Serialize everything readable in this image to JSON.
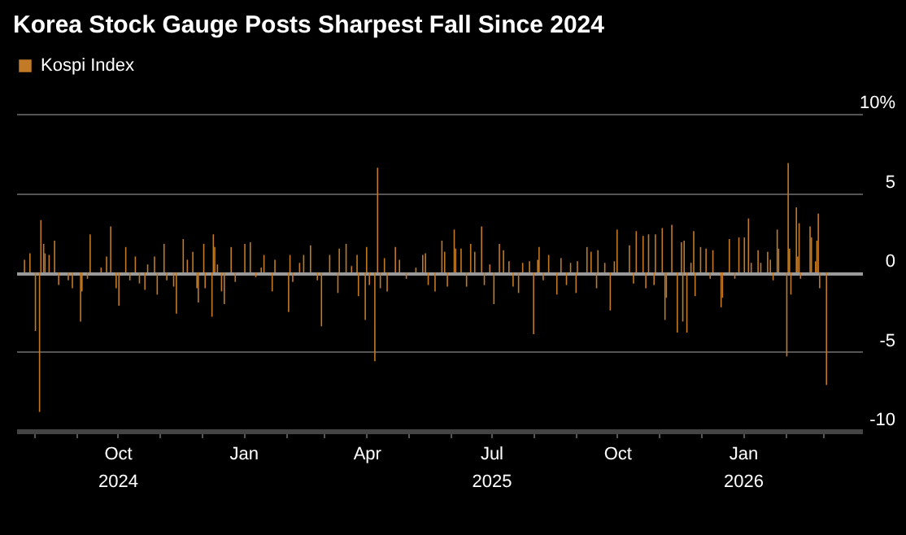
{
  "chart_data": {
    "type": "bar",
    "title": "Korea Stock Gauge Posts Sharpest Fall Since 2024",
    "x": [
      "2024-07-25",
      "2024-07-29",
      "2024-08-02",
      "2024-08-05",
      "2024-08-06",
      "2024-08-08",
      "2024-08-09",
      "2024-08-12",
      "2024-08-16",
      "2024-08-19",
      "2024-08-26",
      "2024-08-29",
      "2024-09-04",
      "2024-09-05",
      "2024-09-09",
      "2024-09-11",
      "2024-09-19",
      "2024-09-23",
      "2024-09-26",
      "2024-09-30",
      "2024-10-02",
      "2024-10-07",
      "2024-10-10",
      "2024-10-14",
      "2024-10-17",
      "2024-10-21",
      "2024-10-23",
      "2024-10-28",
      "2024-10-30",
      "2024-11-04",
      "2024-11-06",
      "2024-11-11",
      "2024-11-13",
      "2024-11-18",
      "2024-11-21",
      "2024-11-25",
      "2024-11-28",
      "2024-11-29",
      "2024-12-03",
      "2024-12-04",
      "2024-12-09",
      "2024-12-10",
      "2024-12-11",
      "2024-12-13",
      "2024-12-16",
      "2024-12-18",
      "2024-12-23",
      "2024-12-26",
      "2025-01-02",
      "2025-01-06",
      "2025-01-10",
      "2025-01-14",
      "2025-01-16",
      "2025-01-22",
      "2025-01-24",
      "2025-02-03",
      "2025-02-04",
      "2025-02-06",
      "2025-02-11",
      "2025-02-14",
      "2025-02-19",
      "2025-02-24",
      "2025-02-27",
      "2025-03-05",
      "2025-03-11",
      "2025-03-12",
      "2025-03-17",
      "2025-03-21",
      "2025-03-25",
      "2025-03-26",
      "2025-03-31",
      "2025-04-01",
      "2025-04-03",
      "2025-04-07",
      "2025-04-09",
      "2025-04-11",
      "2025-04-14",
      "2025-04-16",
      "2025-04-22",
      "2025-04-25",
      "2025-04-30",
      "2025-05-07",
      "2025-05-12",
      "2025-05-14",
      "2025-05-16",
      "2025-05-21",
      "2025-05-26",
      "2025-05-28",
      "2025-05-30",
      "2025-06-04",
      "2025-06-05",
      "2025-06-09",
      "2025-06-13",
      "2025-06-16",
      "2025-06-19",
      "2025-06-24",
      "2025-06-26",
      "2025-06-30",
      "2025-07-03",
      "2025-07-07",
      "2025-07-10",
      "2025-07-14",
      "2025-07-17",
      "2025-07-21",
      "2025-07-24",
      "2025-07-29",
      "2025-08-01",
      "2025-08-04",
      "2025-08-05",
      "2025-08-08",
      "2025-08-12",
      "2025-08-18",
      "2025-08-21",
      "2025-08-25",
      "2025-08-28",
      "2025-09-01",
      "2025-09-02",
      "2025-09-09",
      "2025-09-12",
      "2025-09-16",
      "2025-09-17",
      "2025-09-22",
      "2025-09-26",
      "2025-09-29",
      "2025-10-01",
      "2025-10-10",
      "2025-10-13",
      "2025-10-15",
      "2025-10-20",
      "2025-10-22",
      "2025-10-24",
      "2025-10-28",
      "2025-10-29",
      "2025-11-03",
      "2025-11-05",
      "2025-11-06",
      "2025-11-10",
      "2025-11-14",
      "2025-11-17",
      "2025-11-18",
      "2025-11-19",
      "2025-11-21",
      "2025-11-24",
      "2025-11-26",
      "2025-11-27",
      "2025-12-01",
      "2025-12-05",
      "2025-12-08",
      "2025-12-10",
      "2025-12-16",
      "2025-12-17",
      "2025-12-22",
      "2025-12-26",
      "2025-12-29",
      "2026-01-02",
      "2026-01-05",
      "2026-01-07",
      "2026-01-12",
      "2026-01-14",
      "2026-01-19",
      "2026-01-21",
      "2026-01-23",
      "2026-01-26",
      "2026-01-27",
      "2026-02-02",
      "2026-02-03",
      "2026-02-04",
      "2026-02-05",
      "2026-02-09",
      "2026-02-10",
      "2026-02-11",
      "2026-02-12",
      "2026-02-19",
      "2026-02-20",
      "2026-02-23",
      "2026-02-24",
      "2026-02-25",
      "2026-02-26",
      "2026-03-03"
    ],
    "series": [
      {
        "name": "Kospi Index",
        "color": "#c27a26",
        "values": [
          0.8,
          1.2,
          -3.7,
          -8.8,
          3.3,
          1.8,
          1.2,
          1.1,
          2.0,
          -0.8,
          -0.5,
          -1.0,
          -3.1,
          -1.2,
          -0.4,
          2.4,
          0.3,
          1.0,
          2.9,
          -1.0,
          -2.1,
          1.6,
          -0.5,
          1.0,
          -0.7,
          -1.1,
          0.5,
          1.0,
          -1.4,
          1.8,
          -0.5,
          -0.9,
          -2.6,
          2.1,
          0.8,
          1.3,
          -1.0,
          -1.9,
          1.8,
          -1.0,
          -2.8,
          2.4,
          1.6,
          0.5,
          -1.2,
          -2.0,
          1.6,
          -0.6,
          1.8,
          1.9,
          -0.3,
          0.3,
          1.1,
          -1.2,
          0.8,
          -2.5,
          1.1,
          -0.6,
          0.6,
          1.1,
          1.7,
          -0.5,
          -3.4,
          1.1,
          -1.3,
          1.5,
          1.8,
          0.4,
          1.1,
          -1.5,
          -3.0,
          1.6,
          -0.8,
          -5.6,
          6.6,
          -1.0,
          0.9,
          -1.2,
          1.6,
          0.8,
          -0.4,
          0.3,
          1.1,
          1.2,
          -0.8,
          -1.2,
          2.0,
          1.3,
          -0.9,
          2.7,
          1.5,
          1.5,
          -0.9,
          1.8,
          1.3,
          2.9,
          -0.8,
          0.5,
          -2.0,
          1.8,
          1.4,
          0.7,
          -0.9,
          -1.3,
          0.6,
          0.7,
          -3.9,
          0.8,
          1.6,
          -0.5,
          1.1,
          -1.4,
          0.9,
          -0.8,
          0.6,
          -1.3,
          0.7,
          1.6,
          1.3,
          -1.0,
          1.4,
          0.6,
          -2.4,
          0.7,
          2.7,
          1.7,
          -0.7,
          2.6,
          2.3,
          -1.0,
          2.4,
          -0.8,
          2.4,
          2.8,
          -3.0,
          -1.6,
          3.0,
          -3.8,
          1.9,
          -3.1,
          2.0,
          -3.8,
          0.6,
          2.6,
          -1.5,
          1.6,
          1.5,
          -0.4,
          1.4,
          -2.2,
          -1.6,
          2.1,
          -0.4,
          2.2,
          2.2,
          3.4,
          0.6,
          1.4,
          0.6,
          1.3,
          0.8,
          -0.5,
          2.7,
          1.5,
          -5.3,
          6.9,
          1.5,
          -1.4,
          4.1,
          1.0,
          3.1,
          -0.4,
          2.9,
          2.2,
          0.7,
          2.0,
          3.7,
          -1.0,
          -7.1
        ]
      }
    ],
    "xlim": [
      "2024-07-19",
      "2026-03-29"
    ],
    "xticks": [
      {
        "value": "2024-08-01",
        "label": null
      },
      {
        "value": "2024-09-01",
        "label": null
      },
      {
        "value": "2024-10-01",
        "label": "Oct\n2024"
      },
      {
        "value": "2024-11-01",
        "label": null
      },
      {
        "value": "2024-12-01",
        "label": null
      },
      {
        "value": "2025-01-01",
        "label": "Jan"
      },
      {
        "value": "2025-02-01",
        "label": null
      },
      {
        "value": "2025-03-01",
        "label": null
      },
      {
        "value": "2025-04-01",
        "label": "Apr"
      },
      {
        "value": "2025-05-01",
        "label": null
      },
      {
        "value": "2025-06-01",
        "label": null
      },
      {
        "value": "2025-07-01",
        "label": "Jul\n2025"
      },
      {
        "value": "2025-08-01",
        "label": null
      },
      {
        "value": "2025-09-01",
        "label": null
      },
      {
        "value": "2025-10-01",
        "label": "Oct"
      },
      {
        "value": "2025-11-01",
        "label": null
      },
      {
        "value": "2025-12-01",
        "label": null
      },
      {
        "value": "2026-01-01",
        "label": "Jan\n2026"
      },
      {
        "value": "2026-02-01",
        "label": null
      },
      {
        "value": "2026-03-01",
        "label": null
      }
    ],
    "ylim": [
      -10,
      10
    ],
    "yticks": [
      {
        "value": 10,
        "label": "10%"
      },
      5,
      0,
      -5,
      -10
    ],
    "grid": "y",
    "legend": "top left"
  }
}
